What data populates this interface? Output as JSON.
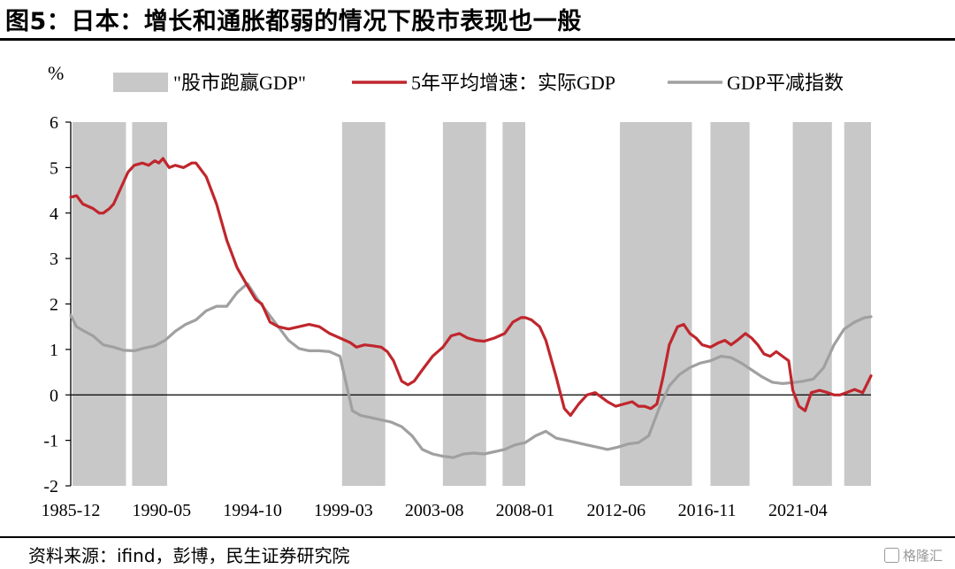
{
  "header": {
    "title": "图5：日本：增长和通胀都弱的情况下股市表现也一般"
  },
  "footer": {
    "source": "资料来源：ifind，彭博，民生证券研究院",
    "watermark": "格隆汇"
  },
  "chart_data": {
    "type": "line",
    "y_unit": "%",
    "ylim": [
      -2,
      6
    ],
    "yticks": [
      -2,
      -1,
      0,
      1,
      2,
      3,
      4,
      5,
      6
    ],
    "xlim": [
      1985.917,
      2024.8
    ],
    "xticks": [
      "1985-12",
      "1990-05",
      "1994-10",
      "1999-03",
      "2003-08",
      "2008-01",
      "2012-06",
      "2016-11",
      "2021-04"
    ],
    "grid": false,
    "legend_position": "top",
    "legend": [
      "\"股市跑赢GDP\"",
      "5年平均增速：实际GDP",
      "GDP平减指数"
    ],
    "shaded_periods": {
      "name": "\"股市跑赢GDP\"",
      "color": "#c8c8c8",
      "ranges": [
        [
          1986.0,
          1988.6
        ],
        [
          1988.9,
          1990.6
        ],
        [
          1999.1,
          2001.2
        ],
        [
          2004.0,
          2006.1
        ],
        [
          2006.9,
          2008.0
        ],
        [
          2012.6,
          2016.1
        ],
        [
          2017.0,
          2018.9
        ],
        [
          2021.0,
          2022.9
        ],
        [
          2023.5,
          2026.4
        ]
      ]
    },
    "series": [
      {
        "name": "5年平均增速：实际GDP",
        "color": "#c0262d",
        "x": [
          1985.917,
          1986.2,
          1986.5,
          1987.0,
          1987.3,
          1987.5,
          1987.8,
          1988.0,
          1988.4,
          1988.7,
          1989.0,
          1989.4,
          1989.7,
          1990.0,
          1990.2,
          1990.4,
          1990.7,
          1991.0,
          1991.4,
          1991.8,
          1992.0,
          1992.5,
          1993.0,
          1993.5,
          1994.0,
          1994.5,
          1994.9,
          1995.2,
          1995.6,
          1996.0,
          1996.5,
          1997.0,
          1997.5,
          1998.0,
          1998.5,
          1999.0,
          1999.5,
          1999.8,
          2000.2,
          2000.6,
          2001.0,
          2001.3,
          2001.6,
          2002.0,
          2002.3,
          2002.6,
          2003.0,
          2003.5,
          2004.0,
          2004.4,
          2004.8,
          2005.2,
          2005.6,
          2006.0,
          2006.5,
          2007.0,
          2007.4,
          2007.8,
          2008.0,
          2008.3,
          2008.7,
          2009.0,
          2009.5,
          2009.9,
          2010.2,
          2010.6,
          2011.0,
          2011.4,
          2011.7,
          2012.0,
          2012.4,
          2012.8,
          2013.2,
          2013.5,
          2013.8,
          2014.1,
          2014.4,
          2014.7,
          2015.0,
          2015.4,
          2015.7,
          2016.0,
          2016.3,
          2016.6,
          2017.0,
          2017.4,
          2017.7,
          2018.0,
          2018.3,
          2018.7,
          2019.0,
          2019.3,
          2019.6,
          2019.9,
          2020.2,
          2020.5,
          2020.8,
          2021.0,
          2021.3,
          2021.6,
          2021.9,
          2022.3,
          2022.7,
          2023.0,
          2023.3,
          2023.6,
          2024.0,
          2024.4,
          2024.8
        ],
        "values": [
          4.35,
          4.38,
          4.2,
          4.1,
          4.0,
          4.0,
          4.1,
          4.2,
          4.6,
          4.9,
          5.05,
          5.1,
          5.05,
          5.15,
          5.1,
          5.2,
          5.0,
          5.05,
          5.0,
          5.1,
          5.1,
          4.8,
          4.2,
          3.4,
          2.8,
          2.4,
          2.1,
          2.0,
          1.6,
          1.5,
          1.45,
          1.5,
          1.55,
          1.5,
          1.35,
          1.25,
          1.15,
          1.05,
          1.1,
          1.08,
          1.05,
          0.95,
          0.75,
          0.3,
          0.22,
          0.3,
          0.55,
          0.85,
          1.05,
          1.3,
          1.35,
          1.25,
          1.2,
          1.18,
          1.25,
          1.35,
          1.6,
          1.7,
          1.7,
          1.65,
          1.5,
          1.2,
          0.4,
          -0.3,
          -0.45,
          -0.2,
          0.0,
          0.05,
          -0.05,
          -0.15,
          -0.25,
          -0.2,
          -0.15,
          -0.25,
          -0.25,
          -0.3,
          -0.2,
          0.4,
          1.1,
          1.5,
          1.55,
          1.35,
          1.25,
          1.1,
          1.05,
          1.15,
          1.2,
          1.1,
          1.2,
          1.35,
          1.25,
          1.1,
          0.9,
          0.85,
          0.95,
          0.85,
          0.75,
          0.1,
          -0.25,
          -0.35,
          0.05,
          0.1,
          0.05,
          0.0,
          0.0,
          0.05,
          0.12,
          0.05,
          0.42
        ]
      },
      {
        "name": "GDP平减指数",
        "color": "#a0a0a0",
        "x": [
          1985.917,
          1986.2,
          1986.5,
          1987.0,
          1987.5,
          1988.0,
          1988.5,
          1989.0,
          1989.5,
          1990.0,
          1990.5,
          1991.0,
          1991.5,
          1992.0,
          1992.5,
          1993.0,
          1993.5,
          1994.0,
          1994.5,
          1995.0,
          1995.5,
          1996.0,
          1996.5,
          1997.0,
          1997.5,
          1998.0,
          1998.5,
          1999.0,
          1999.3,
          1999.6,
          2000.0,
          2000.5,
          2001.0,
          2001.5,
          2002.0,
          2002.5,
          2003.0,
          2003.5,
          2004.0,
          2004.5,
          2005.0,
          2005.5,
          2006.0,
          2006.5,
          2007.0,
          2007.5,
          2008.0,
          2008.5,
          2009.0,
          2009.5,
          2010.0,
          2010.5,
          2011.0,
          2011.5,
          2012.0,
          2012.5,
          2013.0,
          2013.5,
          2014.0,
          2014.5,
          2015.0,
          2015.5,
          2016.0,
          2016.5,
          2017.0,
          2017.5,
          2018.0,
          2018.5,
          2019.0,
          2019.5,
          2020.0,
          2020.5,
          2021.0,
          2021.5,
          2022.0,
          2022.5,
          2023.0,
          2023.5,
          2024.0,
          2024.5,
          2024.8
        ],
        "values": [
          1.75,
          1.5,
          1.42,
          1.3,
          1.1,
          1.05,
          0.98,
          0.97,
          1.03,
          1.08,
          1.2,
          1.4,
          1.55,
          1.65,
          1.85,
          1.95,
          1.95,
          2.25,
          2.45,
          2.1,
          1.8,
          1.5,
          1.2,
          1.02,
          0.97,
          0.97,
          0.95,
          0.85,
          0.25,
          -0.35,
          -0.45,
          -0.5,
          -0.55,
          -0.6,
          -0.7,
          -0.9,
          -1.2,
          -1.3,
          -1.35,
          -1.38,
          -1.3,
          -1.28,
          -1.3,
          -1.25,
          -1.2,
          -1.1,
          -1.05,
          -0.9,
          -0.8,
          -0.95,
          -1.0,
          -1.05,
          -1.1,
          -1.15,
          -1.2,
          -1.15,
          -1.08,
          -1.05,
          -0.9,
          -0.3,
          0.2,
          0.45,
          0.6,
          0.7,
          0.75,
          0.85,
          0.82,
          0.7,
          0.55,
          0.4,
          0.28,
          0.25,
          0.27,
          0.3,
          0.35,
          0.6,
          1.1,
          1.45,
          1.6,
          1.7,
          1.72
        ]
      }
    ]
  }
}
